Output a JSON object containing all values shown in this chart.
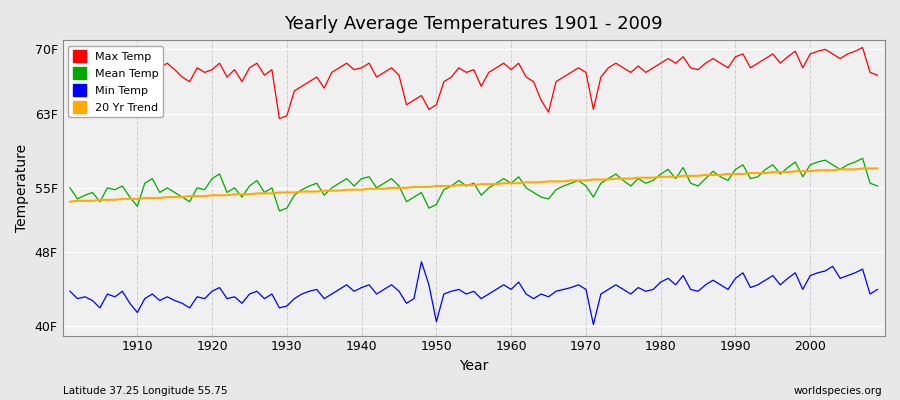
{
  "title": "Yearly Average Temperatures 1901 - 2009",
  "xlabel": "Year",
  "ylabel": "Temperature",
  "years": [
    1901,
    1902,
    1903,
    1904,
    1905,
    1906,
    1907,
    1908,
    1909,
    1910,
    1911,
    1912,
    1913,
    1914,
    1915,
    1916,
    1917,
    1918,
    1919,
    1920,
    1921,
    1922,
    1923,
    1924,
    1925,
    1926,
    1927,
    1928,
    1929,
    1930,
    1931,
    1932,
    1933,
    1934,
    1935,
    1936,
    1937,
    1938,
    1939,
    1940,
    1941,
    1942,
    1943,
    1944,
    1945,
    1946,
    1947,
    1948,
    1949,
    1950,
    1951,
    1952,
    1953,
    1954,
    1955,
    1956,
    1957,
    1958,
    1959,
    1960,
    1961,
    1962,
    1963,
    1964,
    1965,
    1966,
    1967,
    1968,
    1969,
    1970,
    1971,
    1972,
    1973,
    1974,
    1975,
    1976,
    1977,
    1978,
    1979,
    1980,
    1981,
    1982,
    1983,
    1984,
    1985,
    1986,
    1987,
    1988,
    1989,
    1990,
    1991,
    1992,
    1993,
    1994,
    1995,
    1996,
    1997,
    1998,
    1999,
    2000,
    2001,
    2002,
    2003,
    2004,
    2005,
    2006,
    2007,
    2008,
    2009
  ],
  "max_temp": [
    65.8,
    67.0,
    66.5,
    67.2,
    65.5,
    68.0,
    67.5,
    68.2,
    66.8,
    63.2,
    66.0,
    67.5,
    68.0,
    68.5,
    67.8,
    67.0,
    66.5,
    68.0,
    67.5,
    67.8,
    68.5,
    67.0,
    67.8,
    66.5,
    68.0,
    68.5,
    67.2,
    67.8,
    62.5,
    62.8,
    65.5,
    66.0,
    66.5,
    67.0,
    65.8,
    67.5,
    68.0,
    68.5,
    67.8,
    68.0,
    68.5,
    67.0,
    67.5,
    68.0,
    67.2,
    64.0,
    64.5,
    65.0,
    63.5,
    64.0,
    66.5,
    67.0,
    68.0,
    67.5,
    67.8,
    66.0,
    67.5,
    68.0,
    68.5,
    67.8,
    68.5,
    67.0,
    66.5,
    64.5,
    63.2,
    66.5,
    67.0,
    67.5,
    68.0,
    67.5,
    63.5,
    67.0,
    68.0,
    68.5,
    68.0,
    67.5,
    68.2,
    67.5,
    68.0,
    68.5,
    69.0,
    68.5,
    69.2,
    68.0,
    67.8,
    68.5,
    69.0,
    68.5,
    68.0,
    69.2,
    69.5,
    68.0,
    68.5,
    69.0,
    69.5,
    68.5,
    69.2,
    69.8,
    68.0,
    69.5,
    69.8,
    70.0,
    69.5,
    69.0,
    69.5,
    69.8,
    70.2,
    67.5,
    67.2
  ],
  "mean_temp": [
    55.0,
    53.8,
    54.2,
    54.5,
    53.5,
    55.0,
    54.8,
    55.2,
    54.0,
    53.0,
    55.5,
    56.0,
    54.5,
    55.0,
    54.5,
    54.0,
    53.5,
    55.0,
    54.8,
    56.0,
    56.5,
    54.5,
    55.0,
    54.0,
    55.2,
    55.8,
    54.5,
    55.0,
    52.5,
    52.8,
    54.2,
    54.8,
    55.2,
    55.5,
    54.2,
    55.0,
    55.5,
    56.0,
    55.2,
    56.0,
    56.2,
    55.0,
    55.5,
    56.0,
    55.2,
    53.5,
    54.0,
    54.5,
    52.8,
    53.2,
    54.8,
    55.2,
    55.8,
    55.2,
    55.5,
    54.2,
    55.0,
    55.5,
    56.0,
    55.5,
    56.2,
    55.0,
    54.5,
    54.0,
    53.8,
    54.8,
    55.2,
    55.5,
    55.8,
    55.2,
    54.0,
    55.5,
    56.0,
    56.5,
    55.8,
    55.2,
    56.0,
    55.5,
    55.8,
    56.5,
    57.0,
    56.0,
    57.2,
    55.5,
    55.2,
    56.0,
    56.8,
    56.2,
    55.8,
    57.0,
    57.5,
    56.0,
    56.2,
    57.0,
    57.5,
    56.5,
    57.2,
    57.8,
    56.2,
    57.5,
    57.8,
    58.0,
    57.5,
    57.0,
    57.5,
    57.8,
    58.2,
    55.5,
    55.2
  ],
  "min_temp": [
    43.8,
    43.0,
    43.2,
    42.8,
    42.0,
    43.5,
    43.2,
    43.8,
    42.5,
    41.5,
    43.0,
    43.5,
    42.8,
    43.2,
    42.8,
    42.5,
    42.0,
    43.2,
    43.0,
    43.8,
    44.2,
    43.0,
    43.2,
    42.5,
    43.5,
    43.8,
    43.0,
    43.5,
    42.0,
    42.2,
    43.0,
    43.5,
    43.8,
    44.0,
    43.0,
    43.5,
    44.0,
    44.5,
    43.8,
    44.2,
    44.5,
    43.5,
    44.0,
    44.5,
    43.8,
    42.5,
    43.0,
    47.0,
    44.5,
    40.5,
    43.5,
    43.8,
    44.0,
    43.5,
    43.8,
    43.0,
    43.5,
    44.0,
    44.5,
    44.0,
    44.8,
    43.5,
    43.0,
    43.5,
    43.2,
    43.8,
    44.0,
    44.2,
    44.5,
    44.0,
    40.2,
    43.5,
    44.0,
    44.5,
    44.0,
    43.5,
    44.2,
    43.8,
    44.0,
    44.8,
    45.2,
    44.5,
    45.5,
    44.0,
    43.8,
    44.5,
    45.0,
    44.5,
    44.0,
    45.2,
    45.8,
    44.2,
    44.5,
    45.0,
    45.5,
    44.5,
    45.2,
    45.8,
    44.0,
    45.5,
    45.8,
    46.0,
    46.5,
    45.2,
    45.5,
    45.8,
    46.2,
    43.5,
    44.0
  ],
  "trend_years": [
    1901,
    1902,
    1903,
    1904,
    1905,
    1906,
    1907,
    1908,
    1909,
    1910,
    1911,
    1912,
    1913,
    1914,
    1915,
    1916,
    1917,
    1918,
    1919,
    1920,
    1921,
    1922,
    1923,
    1924,
    1925,
    1926,
    1927,
    1928,
    1929,
    1930,
    1931,
    1932,
    1933,
    1934,
    1935,
    1936,
    1937,
    1938,
    1939,
    1940,
    1941,
    1942,
    1943,
    1944,
    1945,
    1946,
    1947,
    1948,
    1949,
    1950,
    1951,
    1952,
    1953,
    1954,
    1955,
    1956,
    1957,
    1958,
    1959,
    1960,
    1961,
    1962,
    1963,
    1964,
    1965,
    1966,
    1967,
    1968,
    1969,
    1970,
    1971,
    1972,
    1973,
    1974,
    1975,
    1976,
    1977,
    1978,
    1979,
    1980,
    1981,
    1982,
    1983,
    1984,
    1985,
    1986,
    1987,
    1988,
    1989,
    1990,
    1991,
    1992,
    1993,
    1994,
    1995,
    1996,
    1997,
    1998,
    1999,
    2000,
    2001,
    2002,
    2003,
    2004,
    2005,
    2006,
    2007,
    2008,
    2009
  ],
  "trend_temp": [
    53.5,
    53.6,
    53.6,
    53.6,
    53.7,
    53.7,
    53.7,
    53.8,
    53.8,
    53.8,
    53.9,
    53.9,
    53.9,
    54.0,
    54.0,
    54.0,
    54.1,
    54.1,
    54.1,
    54.2,
    54.2,
    54.2,
    54.3,
    54.3,
    54.3,
    54.4,
    54.4,
    54.4,
    54.5,
    54.5,
    54.5,
    54.6,
    54.6,
    54.6,
    54.7,
    54.7,
    54.7,
    54.8,
    54.8,
    54.8,
    54.9,
    54.9,
    54.9,
    55.0,
    55.0,
    55.0,
    55.1,
    55.1,
    55.1,
    55.2,
    55.2,
    55.2,
    55.3,
    55.3,
    55.3,
    55.4,
    55.4,
    55.4,
    55.5,
    55.5,
    55.5,
    55.6,
    55.6,
    55.6,
    55.7,
    55.7,
    55.7,
    55.8,
    55.8,
    55.8,
    55.9,
    55.9,
    55.9,
    56.0,
    56.0,
    56.0,
    56.1,
    56.1,
    56.1,
    56.2,
    56.2,
    56.2,
    56.3,
    56.3,
    56.3,
    56.4,
    56.4,
    56.4,
    56.5,
    56.5,
    56.5,
    56.6,
    56.6,
    56.6,
    56.7,
    56.7,
    56.7,
    56.8,
    56.8,
    56.8,
    56.9,
    56.9,
    56.9,
    57.0,
    57.0,
    57.0,
    57.1,
    57.1,
    57.1
  ],
  "max_color": "#ff0000",
  "mean_color": "#00aa00",
  "min_color": "#0000ff",
  "trend_color": "#ffaa00",
  "bg_color": "#e8e8e8",
  "plot_bg_color": "#f0f0f0",
  "yticks": [
    40,
    48,
    55,
    63,
    70
  ],
  "ytick_labels": [
    "40F",
    "48F",
    "55F",
    "63F",
    "70F"
  ],
  "ylim": [
    39,
    71
  ],
  "xlim": [
    1900,
    2010
  ],
  "xticks": [
    1910,
    1920,
    1930,
    1940,
    1950,
    1960,
    1970,
    1980,
    1990,
    2000
  ],
  "footnote_left": "Latitude 37.25 Longitude 55.75",
  "footnote_right": "worldspecies.org",
  "legend_labels": [
    "Max Temp",
    "Mean Temp",
    "Min Temp",
    "20 Yr Trend"
  ],
  "legend_colors": [
    "#ff0000",
    "#00aa00",
    "#0000ff",
    "#ffaa00"
  ]
}
